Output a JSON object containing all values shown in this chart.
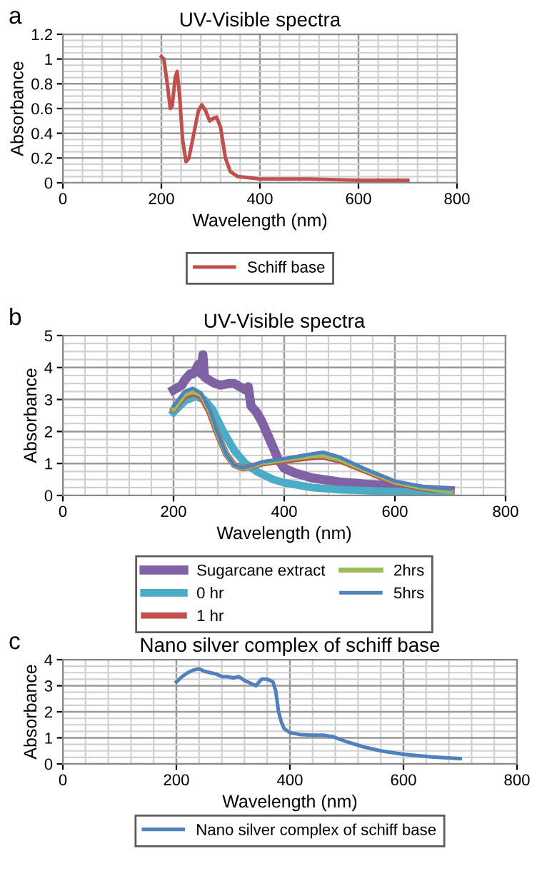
{
  "chart_data": [
    {
      "type": "line",
      "title": "UV-Visible spectra",
      "xlabel": "Wavelength (nm)",
      "ylabel": "Absorbance",
      "annotations": [
        "a"
      ],
      "xlim": [
        0,
        800
      ],
      "xticks": [
        0,
        200,
        400,
        600,
        800
      ],
      "ylim": [
        0,
        1.2
      ],
      "yticks": [
        0,
        0.2,
        0.4,
        0.6,
        0.8,
        1,
        1.2
      ],
      "grid": true,
      "legend": "bottom",
      "series": [
        {
          "name": "Schiff base",
          "color": "#c0504d",
          "x": [
            200,
            205,
            212,
            218,
            222,
            228,
            232,
            237,
            243,
            250,
            256,
            265,
            275,
            282,
            290,
            298,
            305,
            312,
            320,
            330,
            340,
            355,
            380,
            400,
            500,
            600,
            700
          ],
          "values": [
            1.02,
            1.0,
            0.8,
            0.6,
            0.62,
            0.85,
            0.9,
            0.7,
            0.35,
            0.17,
            0.2,
            0.38,
            0.58,
            0.63,
            0.58,
            0.5,
            0.52,
            0.53,
            0.45,
            0.2,
            0.09,
            0.05,
            0.04,
            0.03,
            0.03,
            0.02,
            0.02
          ]
        }
      ]
    },
    {
      "type": "line",
      "title": "UV-Visible spectra",
      "xlabel": "Wavelength (nm)",
      "ylabel": "Absorbance",
      "annotations": [
        "b"
      ],
      "xlim": [
        0,
        800
      ],
      "xticks": [
        0,
        200,
        400,
        600,
        800
      ],
      "ylim": [
        0,
        5
      ],
      "yticks": [
        0,
        1,
        2,
        3,
        4,
        5
      ],
      "grid": true,
      "legend": "bottom",
      "series": [
        {
          "name": "Sugarcane extract",
          "color": "#7f62a3",
          "x": [
            200,
            210,
            215,
            220,
            225,
            230,
            235,
            240,
            242,
            245,
            250,
            253,
            256,
            265,
            275,
            285,
            300,
            310,
            320,
            330,
            335,
            340,
            350,
            360,
            370,
            380,
            390,
            400,
            420,
            450,
            500,
            550,
            600,
            650,
            700
          ],
          "values": [
            3.3,
            3.4,
            3.45,
            3.6,
            3.7,
            3.8,
            3.8,
            3.9,
            4.0,
            4.1,
            3.8,
            4.4,
            3.7,
            3.6,
            3.5,
            3.45,
            3.5,
            3.5,
            3.4,
            3.3,
            3.4,
            2.8,
            2.6,
            2.3,
            1.9,
            1.5,
            1.1,
            0.85,
            0.7,
            0.55,
            0.42,
            0.35,
            0.3,
            0.2,
            0.15
          ]
        },
        {
          "name": "0 hr",
          "color": "#4bacc6",
          "x": [
            200,
            220,
            240,
            255,
            270,
            290,
            310,
            330,
            350,
            380,
            400,
            450,
            500,
            600,
            700
          ],
          "values": [
            2.6,
            2.95,
            3.1,
            3.0,
            2.7,
            2.0,
            1.4,
            1.0,
            0.75,
            0.5,
            0.4,
            0.25,
            0.18,
            0.12,
            0.08
          ]
        },
        {
          "name": "1 hr",
          "color": "#c0504d",
          "x": [
            200,
            220,
            235,
            250,
            265,
            280,
            295,
            310,
            325,
            340,
            360,
            400,
            450,
            470,
            500,
            550,
            600,
            650,
            700
          ],
          "values": [
            2.7,
            3.1,
            3.2,
            3.1,
            2.6,
            1.9,
            1.3,
            0.95,
            0.85,
            0.9,
            1.0,
            1.1,
            1.2,
            1.22,
            1.1,
            0.75,
            0.4,
            0.22,
            0.15
          ]
        },
        {
          "name": "2hrs",
          "color": "#9bbb59",
          "x": [
            200,
            220,
            235,
            250,
            265,
            280,
            295,
            310,
            325,
            340,
            360,
            400,
            450,
            470,
            500,
            550,
            600,
            650,
            700
          ],
          "values": [
            2.7,
            3.15,
            3.25,
            3.15,
            2.65,
            1.92,
            1.3,
            0.95,
            0.86,
            0.9,
            1.02,
            1.12,
            1.24,
            1.25,
            1.13,
            0.77,
            0.42,
            0.24,
            0.12
          ]
        },
        {
          "name": "5hrs",
          "color": "#4f81bd",
          "x": [
            200,
            220,
            235,
            250,
            265,
            280,
            295,
            310,
            325,
            340,
            360,
            400,
            450,
            470,
            500,
            550,
            600,
            650,
            700
          ],
          "values": [
            2.8,
            3.25,
            3.35,
            3.2,
            2.7,
            1.95,
            1.3,
            0.95,
            0.87,
            0.92,
            1.05,
            1.15,
            1.3,
            1.35,
            1.2,
            0.8,
            0.45,
            0.28,
            0.2
          ]
        }
      ]
    },
    {
      "type": "line",
      "title": "Nano silver complex of schiff base",
      "xlabel": "Wavelength (nm)",
      "ylabel": "Absorbance",
      "annotations": [
        "c"
      ],
      "xlim": [
        0,
        800
      ],
      "xticks": [
        0,
        200,
        400,
        600,
        800
      ],
      "ylim": [
        0,
        4
      ],
      "yticks": [
        0,
        1,
        2,
        3,
        4
      ],
      "grid": true,
      "legend": "bottom",
      "series": [
        {
          "name": "Nano silver complex of schiff base",
          "color": "#4f81bd",
          "x": [
            200,
            210,
            220,
            230,
            240,
            250,
            260,
            270,
            280,
            290,
            300,
            310,
            320,
            330,
            340,
            350,
            360,
            370,
            375,
            380,
            385,
            390,
            400,
            420,
            440,
            460,
            475,
            500,
            530,
            560,
            600,
            650,
            700
          ],
          "values": [
            3.15,
            3.35,
            3.5,
            3.6,
            3.65,
            3.55,
            3.5,
            3.45,
            3.35,
            3.35,
            3.3,
            3.35,
            3.2,
            3.1,
            3.0,
            3.25,
            3.25,
            3.15,
            2.8,
            2.0,
            1.6,
            1.35,
            1.2,
            1.12,
            1.1,
            1.1,
            1.05,
            0.85,
            0.65,
            0.5,
            0.37,
            0.27,
            0.2
          ]
        }
      ]
    }
  ]
}
